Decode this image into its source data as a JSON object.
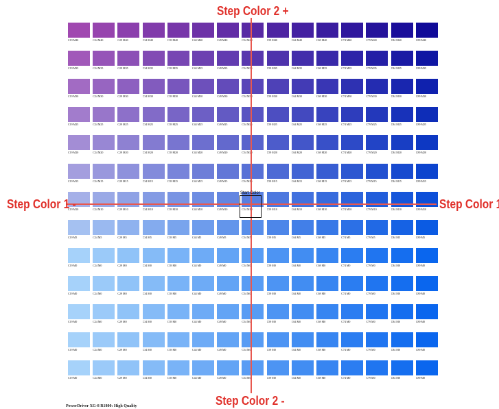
{
  "axis_labels": {
    "step2_plus": "Step Color 2 +",
    "step2_minus": "Step Color 2 -",
    "step1_minus": "Step Color 1 -",
    "step1_plus": "Step Color 1 +"
  },
  "start_label": "Start Color",
  "footer": "PowerDriver XG-8 R1800: High Quality",
  "colors": {
    "guide": "#e8584f",
    "axis_text": "#e0302a",
    "background": "#ffffff"
  },
  "grid": {
    "columns": 15,
    "rows": 13,
    "cyan_values": [
      19,
      24,
      29,
      34,
      39,
      44,
      49,
      54,
      59,
      64,
      69,
      74,
      79,
      84,
      89
    ],
    "magenta_values": [
      40,
      35,
      30,
      25,
      20,
      15,
      10,
      5,
      0,
      0,
      0,
      0,
      0
    ],
    "cell_labels": [
      [
        "C19 M40",
        "C24 M40",
        "C29 M40",
        "C34 M40",
        "C39 M40",
        "C44 M40",
        "C49 M40",
        "C54 M40",
        "C59 M40",
        "C64 M40",
        "C69 M40",
        "C74 M40",
        "C79 M40",
        "C84 M40",
        "C89 M40"
      ],
      [
        "C19 M35",
        "C24 M35",
        "C29 M35",
        "C34 M35",
        "C39 M35",
        "C44 M35",
        "C49 M35",
        "C54 M35",
        "C59 M35",
        "C64 M35",
        "C69 M35",
        "C74 M35",
        "C79 M35",
        "C84 M35",
        "C89 M35"
      ],
      [
        "C19 M30",
        "C24 M30",
        "C29 M30",
        "C34 M30",
        "C39 M30",
        "C44 M30",
        "C49 M30",
        "C54 M30",
        "C59 M30",
        "C64 M30",
        "C69 M30",
        "C74 M30",
        "C79 M30",
        "C84 M30",
        "C89 M30"
      ],
      [
        "C19 M25",
        "C24 M25",
        "C29 M25",
        "C34 M25",
        "C39 M25",
        "C44 M25",
        "C49 M25",
        "C54 M25",
        "C59 M25",
        "C64 M25",
        "C69 M25",
        "C74 M25",
        "C79 M25",
        "C84 M25",
        "C89 M25"
      ],
      [
        "C19 M20",
        "C24 M20",
        "C29 M20",
        "C34 M20",
        "C39 M20",
        "C44 M20",
        "C49 M20",
        "C54 M20",
        "C59 M20",
        "C64 M20",
        "C69 M20",
        "C74 M20",
        "C79 M20",
        "C84 M20",
        "C89 M20"
      ],
      [
        "C19 M15",
        "C24 M15",
        "C29 M15",
        "C34 M15",
        "C39 M15",
        "C44 M15",
        "C49 M15",
        "C54 M15",
        "C59 M15",
        "C64 M15",
        "C69 M15",
        "C74 M15",
        "C79 M15",
        "C84 M15",
        "C89 M15"
      ],
      [
        "C19 M10",
        "C24 M10",
        "C29 M10",
        "C34 M10",
        "C39 M10",
        "C44 M10",
        "C49 M10",
        "C54 M10",
        "C59 M10",
        "C64 M10",
        "C69 M10",
        "C74 M10",
        "C79 M10",
        "C84 M10",
        "C89 M10"
      ],
      [
        "C19 M5",
        "C24 M5",
        "C29 M5",
        "C34 M5",
        "C39 M5",
        "C44 M5",
        "C49 M5",
        "C54 M5",
        "C59 M5",
        "C64 M5",
        "C69 M5",
        "C74 M5",
        "C79 M5",
        "C84 M5",
        "C89 M5"
      ],
      [
        "C19 M0",
        "C24 M0",
        "C29 M0",
        "C34 M0",
        "C39 M0",
        "C44 M0",
        "C49 M0",
        "C54 M0",
        "C59 M0",
        "C64 M0",
        "C69 M0",
        "C74 M0",
        "C79 M0",
        "C84 M0",
        "C89 M0"
      ],
      [
        "C19 M0",
        "C24 M0",
        "C29 M0",
        "C34 M0",
        "C39 M0",
        "C44 M0",
        "C49 M0",
        "C54 M0",
        "C59 M0",
        "C64 M0",
        "C69 M0",
        "C74 M0",
        "C79 M0",
        "C84 M0",
        "C89 M0"
      ],
      [
        "C19 M0",
        "C24 M0",
        "C29 M0",
        "C34 M0",
        "C39 M0",
        "C44 M0",
        "C49 M0",
        "C54 M0",
        "C59 M0",
        "C64 M0",
        "C69 M0",
        "C74 M0",
        "C79 M0",
        "C84 M0",
        "C89 M0"
      ],
      [
        "C19 M0",
        "C24 M0",
        "C29 M0",
        "C34 M0",
        "C39 M0",
        "C44 M0",
        "C49 M0",
        "C54 M0",
        "C59 M0",
        "C64 M0",
        "C69 M0",
        "C74 M0",
        "C79 M0",
        "C84 M0",
        "C89 M0"
      ],
      [
        "C19 M0",
        "C24 M0",
        "C29 M0",
        "C34 M0",
        "C39 M0",
        "C44 M0",
        "C49 M0",
        "C54 M0",
        "C59 M0",
        "C64 M0",
        "C69 M0",
        "C74 M0",
        "C79 M0",
        "C84 M0",
        "C89 M0"
      ]
    ],
    "corner_colors": {
      "top_left": "#a048b0",
      "top_right": "#100a98",
      "bottom_left": "#a6d2fa",
      "bottom_right": "#0a66ee"
    }
  }
}
